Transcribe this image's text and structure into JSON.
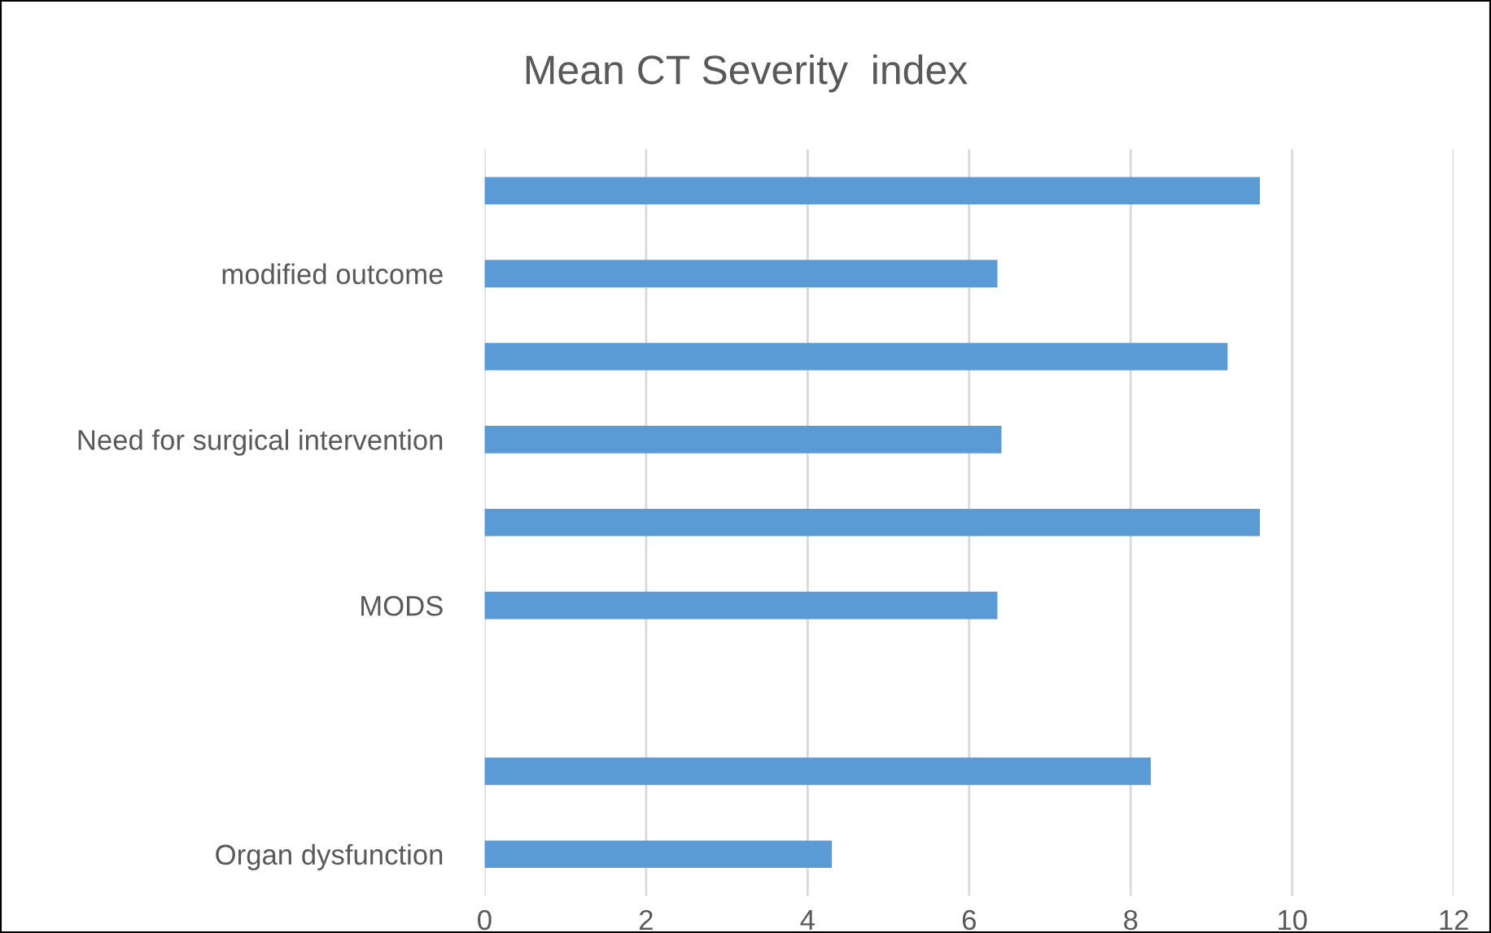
{
  "chart_data": {
    "type": "bar",
    "orientation": "horizontal",
    "title": "Mean CT Severity  index",
    "categories": [
      null,
      "modified outcome",
      null,
      "Need for surgical intervention",
      null,
      "MODS",
      null,
      null,
      "Organ dysfunction"
    ],
    "values": [
      9.6,
      6.35,
      9.2,
      6.4,
      9.6,
      6.35,
      null,
      8.25,
      4.3
    ],
    "color": "#5b9bd5",
    "xlim": [
      0,
      12
    ],
    "xticks": [
      0,
      2,
      4,
      6,
      8,
      10,
      12
    ],
    "grid": "x"
  }
}
